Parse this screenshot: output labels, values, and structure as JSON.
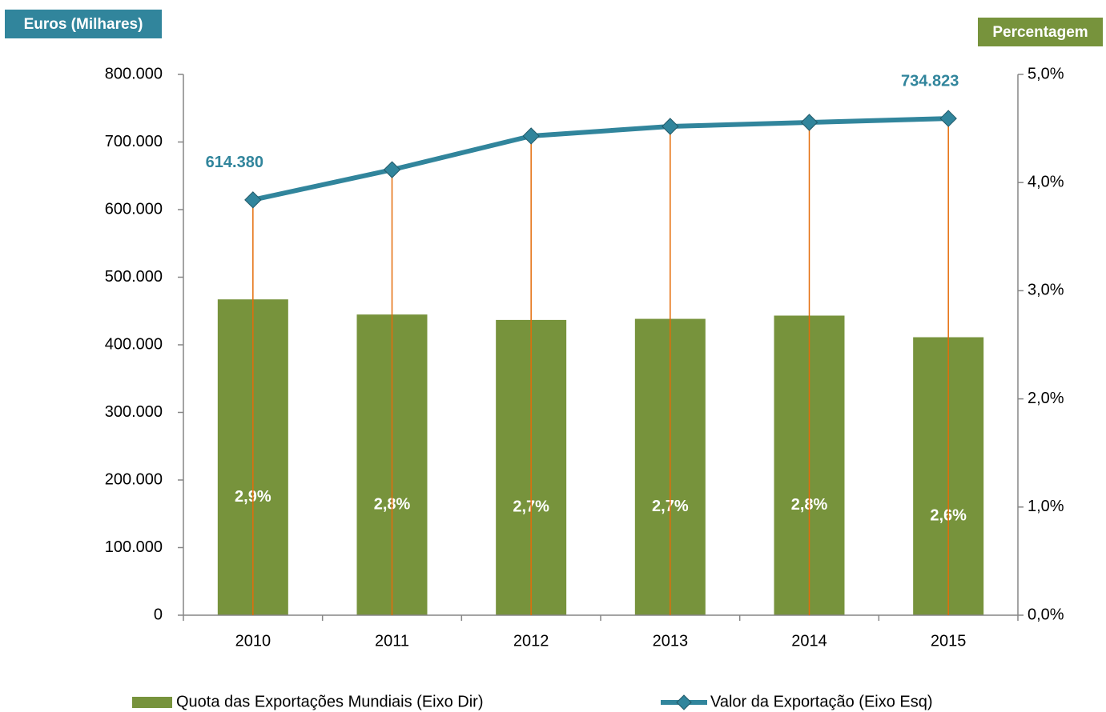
{
  "chart_data": {
    "type": "bar-line",
    "y_label": "Euros (Milhares)",
    "y2_label": "Percentagem",
    "categories": [
      "2010",
      "2011",
      "2012",
      "2013",
      "2014",
      "2015"
    ],
    "series": [
      {
        "name": "Quota das Exportações Mundiais (Eixo Dir)",
        "type": "bar",
        "axis": "y2",
        "color": "#77933c",
        "values": [
          2.92,
          2.78,
          2.73,
          2.74,
          2.77,
          2.57
        ],
        "value_labels": [
          "2,9%",
          "2,8%",
          "2,7%",
          "2,7%",
          "2,8%",
          "2,6%"
        ]
      },
      {
        "name": "Valor da Exportação (Eixo Esq)",
        "type": "line",
        "axis": "y",
        "color": "#31859c",
        "drop_line_color": "#e46c0a",
        "values": [
          614380,
          659000,
          708900,
          723100,
          729000,
          734823
        ],
        "value_labels": [
          "614.380",
          null,
          null,
          null,
          null,
          "734.823"
        ]
      }
    ],
    "ylim": [
      0,
      800000
    ],
    "yticks": [
      0,
      {
        "value": 100000,
        "label": "100.000"
      },
      {
        "value": 200000,
        "label": "200.000"
      },
      {
        "value": 300000,
        "label": "300.000"
      },
      {
        "value": 400000,
        "label": "400.000"
      },
      {
        "value": 500000,
        "label": "500.000"
      },
      {
        "value": 600000,
        "label": "600.000"
      },
      {
        "value": 700000,
        "label": "700.000"
      },
      {
        "value": 800000,
        "label": "800.000"
      }
    ],
    "y2lim": [
      0,
      5
    ],
    "y2ticks": [
      {
        "value": 0,
        "label": "0,0%"
      },
      {
        "value": 1,
        "label": "1,0%"
      },
      {
        "value": 2,
        "label": "2,0%"
      },
      {
        "value": 3,
        "label": "3,0%"
      },
      {
        "value": 4,
        "label": "4,0%"
      },
      {
        "value": 5,
        "label": "5,0%"
      }
    ],
    "grid": false,
    "legend": "bottom"
  }
}
